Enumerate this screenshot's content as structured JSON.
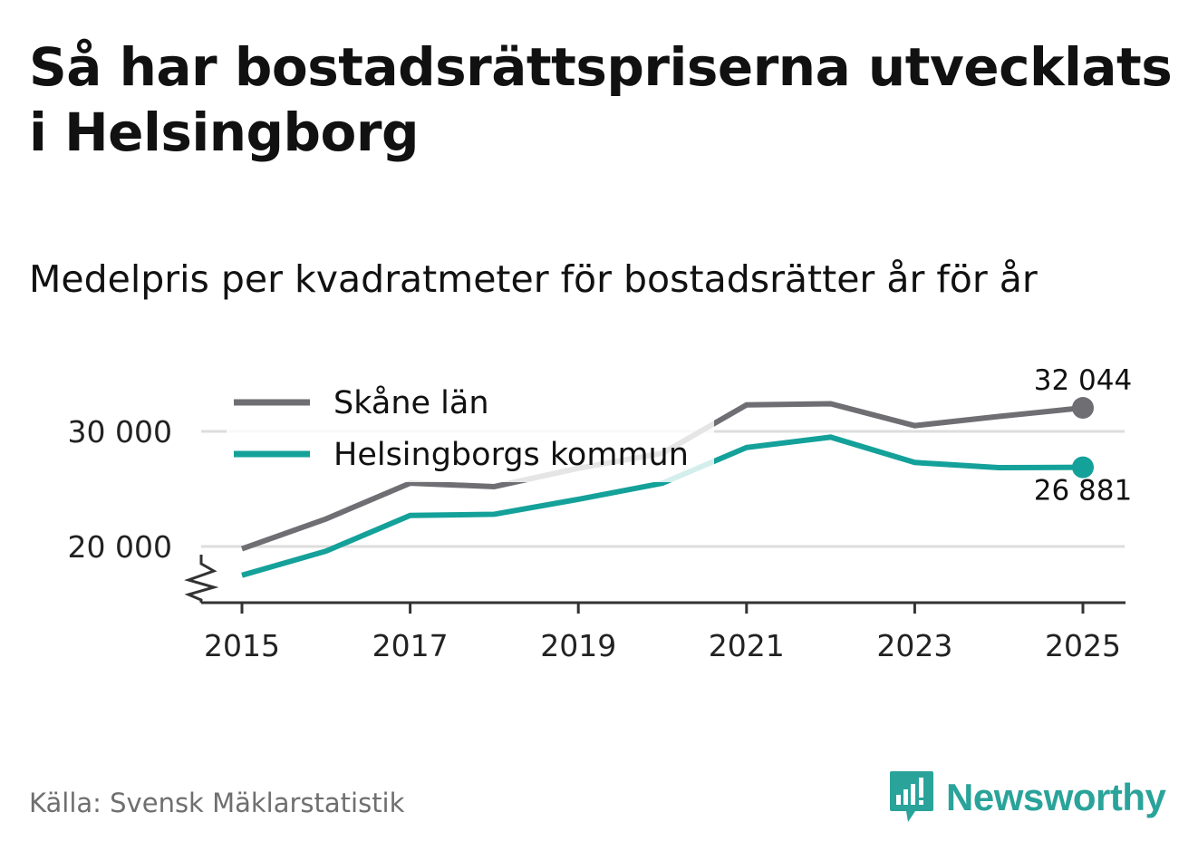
{
  "title": "Så har bostadsrättspriserna utvecklats i Helsingborg",
  "subtitle": "Medelpris per kvadratmeter för bostadsrätter år för år",
  "source": "Källa: Svensk Mäklarstatistik",
  "brand": {
    "name": "Newsworthy",
    "icon": "newsworthy-logo-icon"
  },
  "colors": {
    "skane": "#6e6e73",
    "helsingborg": "#14a19a",
    "grid": "#dddddd",
    "axis": "#333333",
    "text": "#111111"
  },
  "chart_data": {
    "type": "line",
    "x": [
      2015,
      2016,
      2017,
      2018,
      2019,
      2020,
      2021,
      2022,
      2023,
      2024,
      2025
    ],
    "x_ticks": [
      2015,
      2017,
      2019,
      2021,
      2023,
      2025
    ],
    "x_tick_labels": [
      "2015",
      "2017",
      "2019",
      "2021",
      "2023",
      "2025"
    ],
    "y_ticks": [
      20000,
      30000
    ],
    "y_tick_labels": [
      "20 000",
      "30 000"
    ],
    "ylim": [
      15000,
      33500
    ],
    "axis_break": true,
    "series": [
      {
        "name": "Skåne län",
        "key": "skane",
        "values": [
          19800,
          22400,
          25500,
          25200,
          26800,
          28100,
          32300,
          32400,
          30500,
          31300,
          32044
        ],
        "end_label": "32 044",
        "end_label_position": "above"
      },
      {
        "name": "Helsingborgs kommun",
        "key": "helsingborg",
        "values": [
          17500,
          19600,
          22700,
          22800,
          24100,
          25500,
          28600,
          29500,
          27300,
          26850,
          26881
        ],
        "end_label": "26 881",
        "end_label_position": "below"
      }
    ],
    "legend": "top-left"
  }
}
